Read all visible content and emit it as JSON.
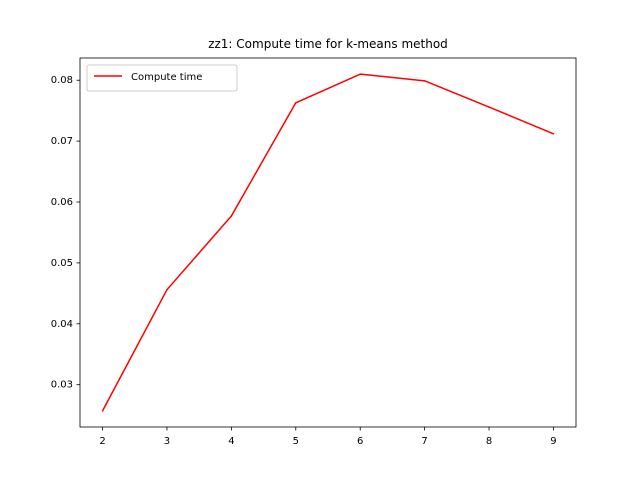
{
  "chart_data": {
    "type": "line",
    "title": "zz1: Compute time for k-means method",
    "xlabel": "",
    "ylabel": "",
    "x": [
      2,
      3,
      4,
      5,
      6,
      7,
      8,
      9
    ],
    "series": [
      {
        "name": "Compute time",
        "color": "#ff0000",
        "values": [
          0.0257,
          0.0456,
          0.0577,
          0.0763,
          0.081,
          0.0799,
          0.0756,
          0.0712
        ]
      }
    ],
    "xlim": [
      1.65,
      9.35
    ],
    "ylim": [
      0.02305,
      0.08365
    ],
    "x_ticks": [
      2,
      3,
      4,
      5,
      6,
      7,
      8,
      9
    ],
    "y_ticks": [
      0.03,
      0.04,
      0.05,
      0.06,
      0.07,
      0.08
    ],
    "x_tick_labels": [
      "2",
      "3",
      "4",
      "5",
      "6",
      "7",
      "8",
      "9"
    ],
    "y_tick_labels": [
      "0.03",
      "0.04",
      "0.05",
      "0.06",
      "0.07",
      "0.08"
    ],
    "grid": false,
    "legend_position": "top-left"
  }
}
